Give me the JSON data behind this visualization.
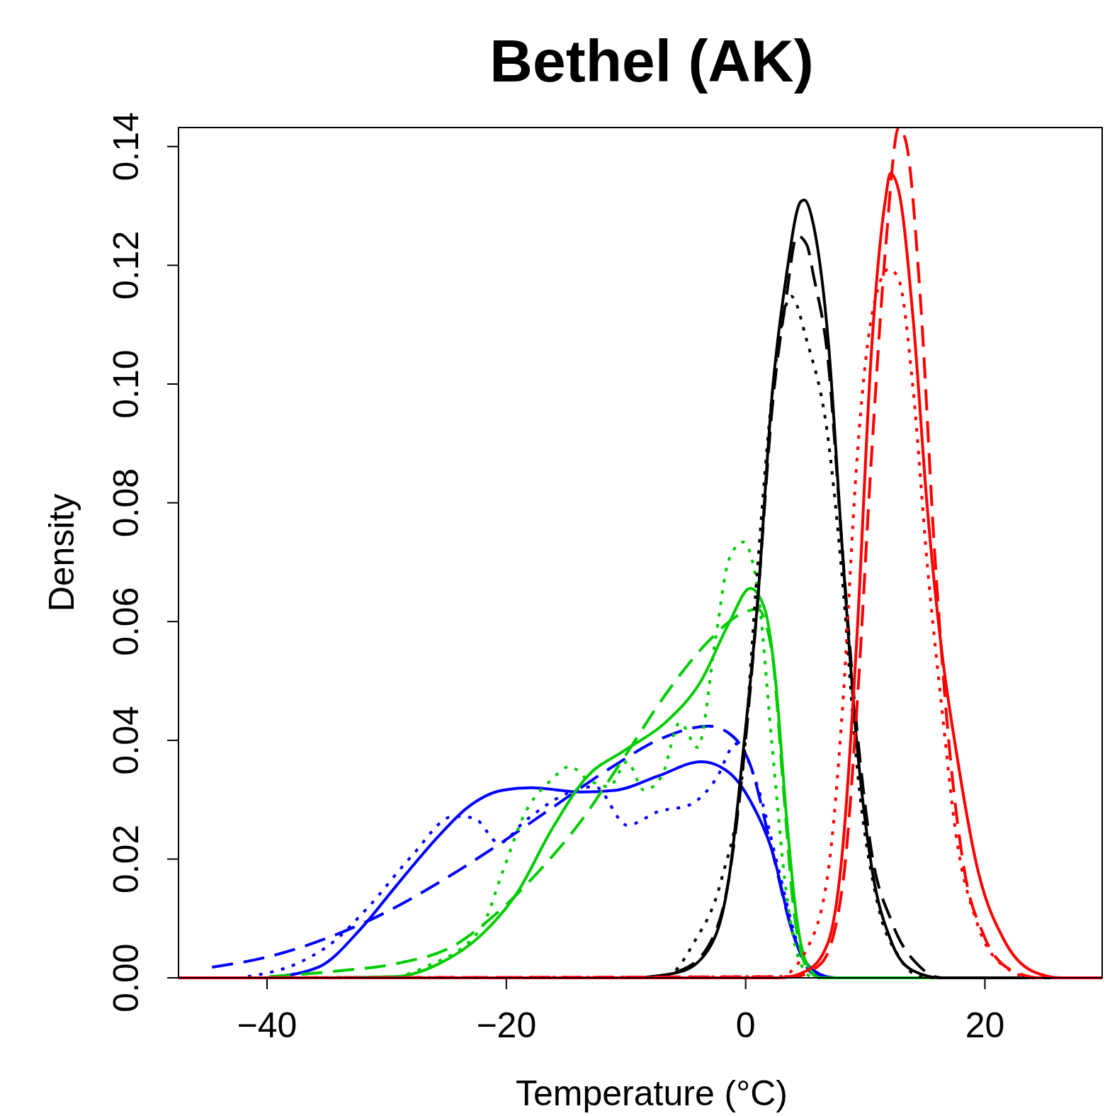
{
  "chart_data": {
    "type": "line",
    "title": "Bethel (AK)",
    "xlabel": "Temperature (°C)",
    "ylabel": "Density",
    "xlim": [
      -47.4,
      29.8
    ],
    "ylim": [
      0,
      0.1432
    ],
    "xticks": [
      {
        "value": -40,
        "label": "−40"
      },
      {
        "value": -20,
        "label": "−20"
      },
      0,
      20
    ],
    "yticks": [
      {
        "value": 0,
        "label": "0.00"
      },
      {
        "value": 0.02,
        "label": "0.02"
      },
      {
        "value": 0.04,
        "label": "0.04"
      },
      {
        "value": 0.06,
        "label": "0.06"
      },
      {
        "value": 0.08,
        "label": "0.08"
      },
      {
        "value": 0.1,
        "label": "0.10"
      },
      {
        "value": 0.12,
        "label": "0.12"
      },
      {
        "value": 0.14,
        "label": "0.14"
      }
    ],
    "grid": false,
    "marker": "none",
    "series": [
      {
        "color": "#0000ff",
        "line_style": "solid",
        "x": [
          -40,
          -35.7,
          -32.1,
          -29.2,
          -25.6,
          -23.3,
          -20.3,
          -17.9,
          -13.8,
          -10.8,
          -7.3,
          -3.7,
          -1.4,
          0.4,
          2.2,
          4.0,
          5.7,
          7.5,
          29.8
        ],
        "values": [
          0,
          0.0018,
          0.0084,
          0.0155,
          0.024,
          0.0286,
          0.0316,
          0.032,
          0.0313,
          0.0316,
          0.034,
          0.0364,
          0.0346,
          0.0298,
          0.0215,
          0.0072,
          0.0012,
          0,
          0
        ]
      },
      {
        "color": "#0000ff",
        "line_style": "dashed",
        "x": [
          -44.6,
          -39.8,
          -35.1,
          -30.4,
          -25.6,
          -20.9,
          -16.2,
          -11.4,
          -6.7,
          -3.1,
          -1.4,
          0.4,
          2.2,
          4.0,
          5.7,
          7.5,
          29.8
        ],
        "values": [
          0.0018,
          0.0036,
          0.0066,
          0.0107,
          0.0161,
          0.0221,
          0.0286,
          0.0352,
          0.0406,
          0.0424,
          0.0412,
          0.0358,
          0.0215,
          0.0072,
          0.0006,
          0,
          0
        ]
      },
      {
        "color": "#0000ff",
        "line_style": "dotted",
        "x": [
          -41.6,
          -37.5,
          -34.5,
          -31.5,
          -28,
          -24.4,
          -22.7,
          -20.6,
          -18.5,
          -15,
          -12.6,
          -9.9,
          -7.3,
          -4.6,
          -2.5,
          -0.8,
          1,
          2.8,
          4.3,
          5.7,
          7.5,
          29.8
        ],
        "values": [
          0.0002,
          0.0024,
          0.006,
          0.012,
          0.0203,
          0.0272,
          0.0269,
          0.0227,
          0.0263,
          0.031,
          0.0322,
          0.0257,
          0.028,
          0.0292,
          0.0334,
          0.0394,
          0.0322,
          0.0179,
          0.006,
          0.0006,
          0,
          0
        ]
      },
      {
        "color": "#00cd00",
        "line_style": "solid",
        "x": [
          -35.7,
          -29.2,
          -25.6,
          -22.1,
          -19.1,
          -16.2,
          -13.2,
          -10.2,
          -6.7,
          -3.7,
          -1.4,
          0.4,
          1.6,
          2.5,
          3.4,
          4.3,
          5.1,
          6.3,
          29.8
        ],
        "values": [
          0,
          0.0002,
          0.0024,
          0.0072,
          0.0143,
          0.025,
          0.034,
          0.0382,
          0.043,
          0.0501,
          0.0597,
          0.0656,
          0.0621,
          0.0501,
          0.0275,
          0.0095,
          0.0024,
          0,
          0
        ]
      },
      {
        "color": "#00cd00",
        "line_style": "dashed",
        "x": [
          -39.8,
          -33.9,
          -29.2,
          -24.4,
          -20.9,
          -17.3,
          -13.8,
          -10.2,
          -6.7,
          -3.1,
          -0.2,
          1,
          2.2,
          3.1,
          4.0,
          5.1,
          6.3,
          29.8
        ],
        "values": [
          0.0002,
          0.0012,
          0.0024,
          0.0054,
          0.0107,
          0.0179,
          0.0263,
          0.037,
          0.0477,
          0.0567,
          0.0615,
          0.0621,
          0.0549,
          0.0334,
          0.0119,
          0.0018,
          0,
          0
        ]
      },
      {
        "color": "#00cd00",
        "line_style": "dotted",
        "x": [
          -29.2,
          -26.8,
          -22.1,
          -20.3,
          -18.5,
          -16.2,
          -14.7,
          -13.2,
          -11.4,
          -9.9,
          -8.5,
          -7,
          -5.5,
          -4,
          -2.5,
          -1.4,
          -0.2,
          1,
          2.2,
          3.4,
          4.6,
          5.7,
          29.8
        ],
        "values": [
          0,
          0.0018,
          0.0084,
          0.0179,
          0.0275,
          0.0334,
          0.0356,
          0.0334,
          0.0322,
          0.0364,
          0.0316,
          0.034,
          0.043,
          0.0388,
          0.0573,
          0.0704,
          0.0734,
          0.0656,
          0.0394,
          0.0143,
          0.0024,
          0,
          0
        ]
      },
      {
        "color": "#000000",
        "line_style": "solid",
        "x": [
          -9.1,
          -5.5,
          -3.1,
          -1.4,
          -0.2,
          1,
          2.2,
          3.4,
          4.6,
          4.9,
          5.7,
          6.9,
          8.1,
          9.3,
          10.5,
          12.2,
          14,
          16.4,
          29.8
        ],
        "values": [
          0,
          0.001,
          0.0048,
          0.0167,
          0.0382,
          0.0633,
          0.0979,
          0.1182,
          0.1307,
          0.131,
          0.1265,
          0.1074,
          0.0716,
          0.0394,
          0.0191,
          0.006,
          0.0012,
          0,
          0
        ]
      },
      {
        "color": "#000000",
        "line_style": "dashed",
        "x": [
          -8.5,
          -5.5,
          -3.1,
          -1.4,
          -0.2,
          1,
          2.2,
          3.4,
          4.3,
          5.1,
          5.7,
          6.9,
          8.1,
          9.3,
          10.5,
          12.2,
          14.6,
          16.4,
          29.8
        ],
        "values": [
          0,
          0.0012,
          0.0054,
          0.0167,
          0.036,
          0.0633,
          0.0955,
          0.1146,
          0.125,
          0.1235,
          0.118,
          0.1038,
          0.0716,
          0.042,
          0.0215,
          0.0095,
          0.0018,
          0,
          0
        ]
      },
      {
        "color": "#000000",
        "line_style": "dotted",
        "x": [
          -8.5,
          -6.7,
          -4.3,
          -2,
          -0.2,
          1,
          2.2,
          3.4,
          3.8,
          5.1,
          6.9,
          8.1,
          9.3,
          11.1,
          12.8,
          14.6,
          16.4,
          29.8
        ],
        "values": [
          0,
          0.0002,
          0.006,
          0.0167,
          0.0358,
          0.0692,
          0.0979,
          0.1134,
          0.1148,
          0.1074,
          0.0907,
          0.0668,
          0.0358,
          0.0119,
          0.0036,
          0.0002,
          0,
          0
        ]
      },
      {
        "color": "#ff0000",
        "line_style": "solid",
        "x": [
          -47.4,
          2.8,
          5.1,
          6.9,
          8.1,
          9.3,
          10.5,
          11.7,
          12.1,
          12.8,
          14,
          15.2,
          16.4,
          17.6,
          19.3,
          21.7,
          24.1,
          26.4,
          29.8
        ],
        "values": [
          0,
          0,
          0.0012,
          0.006,
          0.0215,
          0.0573,
          0.105,
          0.1313,
          0.1355,
          0.1325,
          0.111,
          0.0788,
          0.0549,
          0.0382,
          0.0191,
          0.006,
          0.001,
          0,
          0
        ]
      },
      {
        "color": "#ff0000",
        "line_style": "dashed",
        "x": [
          -47.4,
          4,
          6.3,
          8.1,
          9.3,
          10.5,
          11.7,
          12.8,
          13.4,
          14.6,
          15.8,
          17,
          18.2,
          19.9,
          22.3,
          24.7,
          29.8
        ],
        "values": [
          0,
          0.0002,
          0.0024,
          0.0155,
          0.0454,
          0.0871,
          0.1229,
          0.1432,
          0.1408,
          0.1146,
          0.0716,
          0.0394,
          0.0191,
          0.0072,
          0.0012,
          0,
          0
        ]
      },
      {
        "color": "#ff0000",
        "line_style": "dotted",
        "x": [
          -47.4,
          2.8,
          5.1,
          6.9,
          8.1,
          9.3,
          10.5,
          12,
          12.8,
          14,
          15.2,
          16.4,
          17.6,
          19.3,
          21.7,
          24.1,
          29.8
        ],
        "values": [
          0,
          0.0002,
          0.0048,
          0.0179,
          0.0454,
          0.0871,
          0.111,
          0.1194,
          0.1176,
          0.0991,
          0.0692,
          0.0454,
          0.0239,
          0.0095,
          0.0018,
          0,
          0
        ]
      }
    ]
  }
}
